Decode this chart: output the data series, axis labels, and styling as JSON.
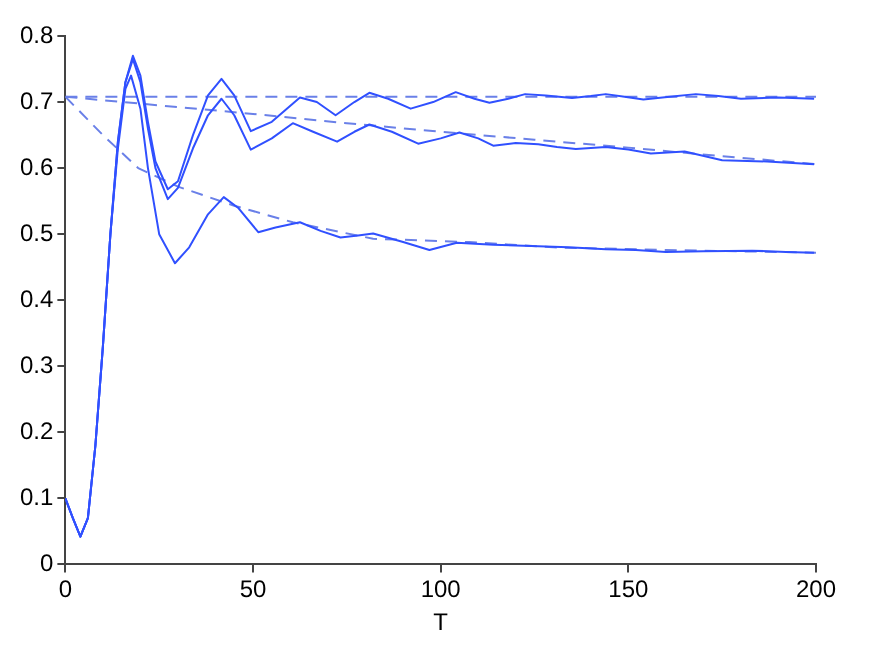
{
  "chart_data": {
    "type": "line",
    "xlabel": "T",
    "xlim": [
      0,
      200
    ],
    "ylim": [
      0,
      0.8
    ],
    "xticks": [
      0,
      50,
      100,
      150,
      200
    ],
    "yticks": [
      0,
      0.1,
      0.2,
      0.3,
      0.4,
      0.5,
      0.6,
      0.7,
      0.8
    ],
    "grid": false,
    "legend": false,
    "marker": "none",
    "series": [
      {
        "color": "#3050ff",
        "line_style": "solid",
        "x": [
          0,
          2,
          4,
          6,
          8,
          10,
          12,
          14,
          16,
          18,
          20,
          22,
          24,
          27.3,
          30,
          34,
          38,
          41.6,
          45,
          49.4,
          55,
          62.5,
          67,
          72,
          77,
          81,
          86,
          92,
          98,
          104,
          109,
          113,
          118,
          122.5,
          128,
          135,
          140,
          144,
          149,
          154,
          161,
          168,
          174,
          180,
          190,
          199.5
        ],
        "values": [
          0.1,
          0.07,
          0.042,
          0.07,
          0.18,
          0.33,
          0.5,
          0.64,
          0.73,
          0.77,
          0.74,
          0.67,
          0.61,
          0.568,
          0.58,
          0.65,
          0.71,
          0.735,
          0.71,
          0.656,
          0.67,
          0.707,
          0.7,
          0.68,
          0.7,
          0.714,
          0.705,
          0.69,
          0.7,
          0.715,
          0.705,
          0.699,
          0.705,
          0.712,
          0.71,
          0.706,
          0.709,
          0.712,
          0.708,
          0.704,
          0.708,
          0.712,
          0.709,
          0.705,
          0.707,
          0.705
        ]
      },
      {
        "color": "#3050ff",
        "line_style": "solid",
        "x": [
          0,
          2,
          4,
          6,
          8,
          10,
          12,
          14,
          16,
          18,
          20,
          22,
          24,
          27.3,
          30,
          34,
          38,
          41.6,
          45,
          49.4,
          55,
          60.6,
          66,
          72.4,
          77,
          81,
          87,
          94,
          100,
          105,
          110,
          114,
          120,
          126,
          131,
          136,
          144,
          150,
          156,
          165,
          175,
          187,
          199.5
        ],
        "values": [
          0.1,
          0.07,
          0.042,
          0.07,
          0.18,
          0.33,
          0.5,
          0.64,
          0.73,
          0.765,
          0.73,
          0.66,
          0.6,
          0.553,
          0.57,
          0.63,
          0.68,
          0.705,
          0.68,
          0.628,
          0.645,
          0.668,
          0.655,
          0.64,
          0.655,
          0.666,
          0.655,
          0.637,
          0.645,
          0.654,
          0.645,
          0.634,
          0.638,
          0.636,
          0.632,
          0.629,
          0.632,
          0.628,
          0.622,
          0.625,
          0.612,
          0.61,
          0.606
        ]
      },
      {
        "color": "#3050ff",
        "line_style": "solid",
        "x": [
          0,
          2,
          4,
          6,
          8,
          10,
          12,
          14,
          16,
          17.5,
          20,
          22,
          25,
          29.2,
          33,
          38,
          42.2,
          46,
          51.4,
          56,
          62.5,
          68,
          73.3,
          78,
          82,
          90,
          97,
          104.3,
          114,
          124,
          134,
          144,
          152,
          160,
          170,
          183,
          192,
          199.5
        ],
        "values": [
          0.1,
          0.07,
          0.042,
          0.07,
          0.18,
          0.33,
          0.5,
          0.63,
          0.72,
          0.74,
          0.69,
          0.6,
          0.5,
          0.456,
          0.48,
          0.53,
          0.556,
          0.54,
          0.503,
          0.51,
          0.518,
          0.505,
          0.495,
          0.498,
          0.501,
          0.488,
          0.476,
          0.487,
          0.484,
          0.482,
          0.48,
          0.477,
          0.476,
          0.473,
          0.474,
          0.475,
          0.473,
          0.472
        ]
      },
      {
        "color": "#6a80e8",
        "line_style": "dashed",
        "x": [
          0,
          200
        ],
        "values": [
          0.708,
          0.708
        ]
      },
      {
        "color": "#6a80e8",
        "line_style": "dashed",
        "x": [
          0,
          25,
          50,
          75,
          100,
          125,
          150,
          175,
          200
        ],
        "values": [
          0.708,
          0.695,
          0.682,
          0.668,
          0.655,
          0.643,
          0.631,
          0.618,
          0.606
        ]
      },
      {
        "color": "#6a80e8",
        "line_style": "dashed",
        "x": [
          0,
          10,
          19.4,
          30,
          45,
          60.6,
          82,
          107.6,
          130,
          160,
          200
        ],
        "values": [
          0.708,
          0.65,
          0.6,
          0.572,
          0.543,
          0.518,
          0.493,
          0.488,
          0.48,
          0.476,
          0.472
        ]
      }
    ]
  }
}
